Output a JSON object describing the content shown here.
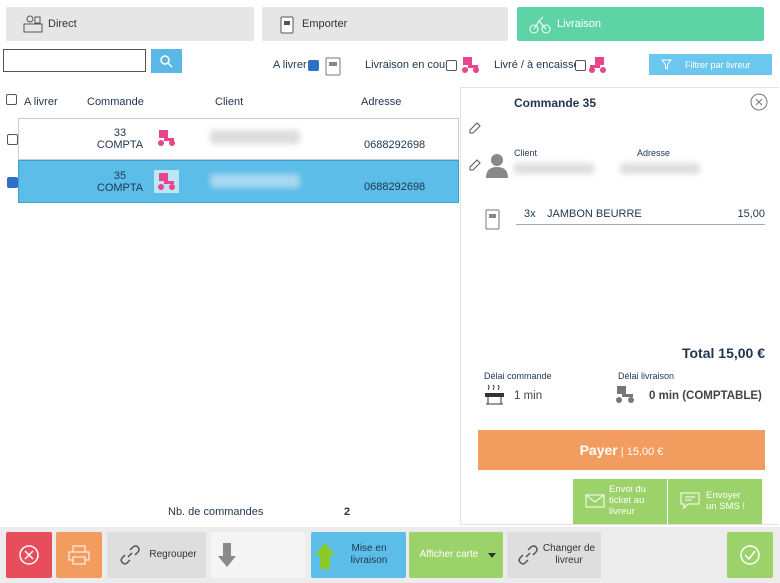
{
  "tabs": [
    "Direct",
    "Emporter",
    "Livraison"
  ],
  "filters": {
    "to_deliver": "A livrer",
    "in_delivery": "Livraison en cours",
    "delivered": "Livré / à encaisser",
    "filter_button": "Filtrer par livreur"
  },
  "table": {
    "headers": [
      "A livrer",
      "Commande",
      "Client",
      "Adresse"
    ],
    "rows": [
      {
        "order": "33",
        "label": "COMPTA",
        "phone": "0688292698"
      },
      {
        "order": "35",
        "label": "COMPTA",
        "phone": "0688292698"
      }
    ]
  },
  "footer": {
    "count_label": "Nb. de commandes",
    "count": 2
  },
  "order": {
    "title": "Commande 35",
    "client_label": "Client",
    "address_label": "Adresse",
    "items": [
      {
        "qty": "3x",
        "name": "JAMBON BEURRE",
        "price": "15,00"
      }
    ],
    "total": "Total 15,00 €",
    "order_delay_label": "Délai commande",
    "order_delay": "1 min",
    "delivery_delay_label": "Délai livraison",
    "delivery_delay": "0 min (COMPTABLE)",
    "pay": "Payer",
    "pay_separator": "|",
    "pay_amount": "15,00 €",
    "send_ticket": "Envoi du ticket au livreur",
    "send_sms": "Envoyer un SMS !"
  },
  "toolbar": {
    "group": "Regrouper",
    "dispatch": "Mise en livraison",
    "show_map": "Afficher carte",
    "change_driver": "Changer de livreur"
  }
}
